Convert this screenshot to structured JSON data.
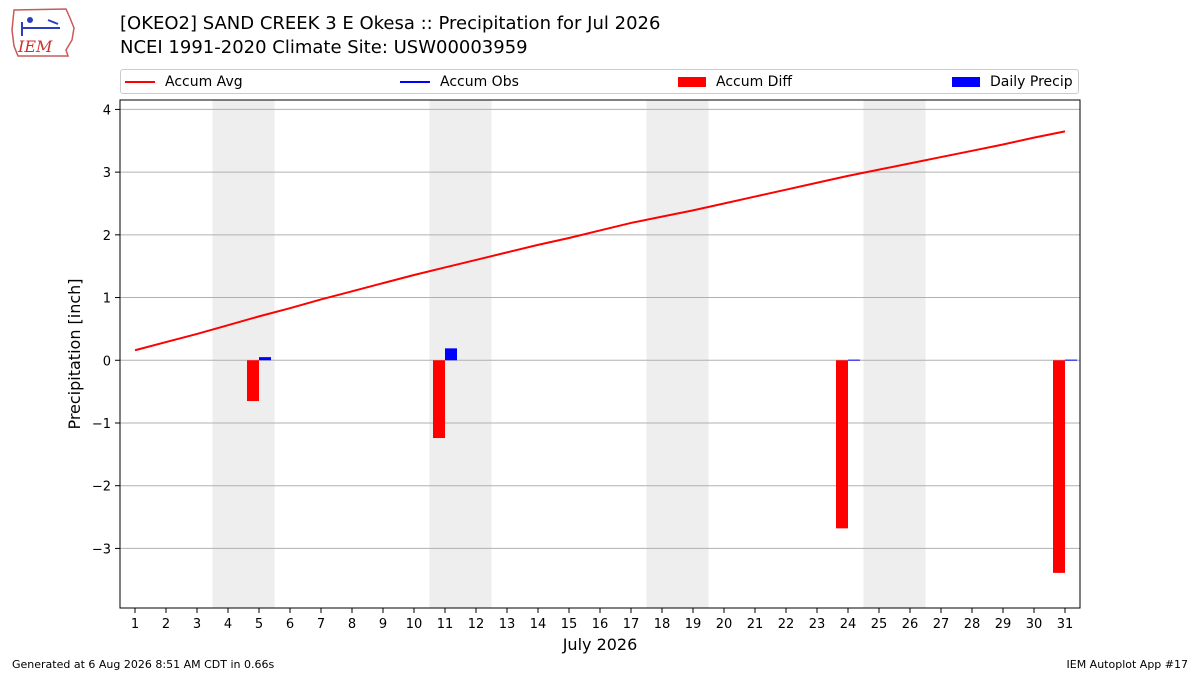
{
  "header": {
    "title_line1": "[OKEO2] SAND CREEK 3 E Okesa :: Precipitation for Jul 2026",
    "title_line2": "NCEI 1991-2020 Climate Site: USW00003959",
    "logo_text": "IEM"
  },
  "legend": {
    "accum_avg": "Accum Avg",
    "accum_obs": "Accum Obs",
    "accum_diff": "Accum Diff",
    "daily_precip": "Daily Precip"
  },
  "colors": {
    "accum_avg": "#ff0000",
    "accum_obs": "#0000ff",
    "accum_diff": "#ff0000",
    "daily_precip": "#0000ff",
    "weekend_shade": "#eeeeee",
    "grid": "#b0b0b0"
  },
  "chart_data": {
    "type": "bar",
    "xlabel": "July 2026",
    "ylabel": "Precipitation [inch]",
    "ylim": [
      -3.95,
      4.15
    ],
    "yticks": [
      4,
      3,
      2,
      1,
      0,
      -1,
      -2,
      -3
    ],
    "ytick_labels": [
      "4",
      "3",
      "2",
      "1",
      "0",
      "−1",
      "−2",
      "−3"
    ],
    "days": [
      1,
      2,
      3,
      4,
      5,
      6,
      7,
      8,
      9,
      10,
      11,
      12,
      13,
      14,
      15,
      16,
      17,
      18,
      19,
      20,
      21,
      22,
      23,
      24,
      25,
      26,
      27,
      28,
      29,
      30,
      31
    ],
    "weekend_days": [
      4,
      5,
      11,
      12,
      18,
      19,
      25,
      26
    ],
    "grid": "horizontal",
    "legend_position": "top",
    "series": [
      {
        "name": "Accum Avg",
        "type": "line",
        "x": [
          1,
          2,
          3,
          4,
          5,
          6,
          7,
          8,
          9,
          10,
          11,
          12,
          13,
          14,
          15,
          16,
          17,
          18,
          19,
          20,
          21,
          22,
          23,
          24,
          25,
          26,
          27,
          28,
          29,
          30,
          31
        ],
        "values": [
          0.16,
          0.29,
          0.42,
          0.56,
          0.7,
          0.83,
          0.97,
          1.1,
          1.23,
          1.36,
          1.48,
          1.6,
          1.72,
          1.84,
          1.95,
          2.07,
          2.19,
          2.29,
          2.39,
          2.5,
          2.61,
          2.72,
          2.83,
          2.94,
          3.04,
          3.14,
          3.24,
          3.34,
          3.44,
          3.55,
          3.65
        ]
      },
      {
        "name": "Accum Obs",
        "type": "line",
        "x": [
          1,
          31
        ],
        "values": [
          0,
          0
        ]
      },
      {
        "name": "Accum Diff",
        "type": "bar",
        "x": [
          5,
          11,
          24,
          31
        ],
        "values": [
          -0.65,
          -1.24,
          -2.68,
          -3.39
        ]
      },
      {
        "name": "Daily Precip",
        "type": "bar",
        "x": [
          5,
          11,
          24,
          31
        ],
        "values": [
          0.05,
          0.19,
          0.01,
          0.01
        ]
      }
    ]
  },
  "footer": {
    "left": "Generated at 6 Aug 2026 8:51 AM CDT in 0.66s",
    "right": "IEM Autoplot App #17"
  }
}
